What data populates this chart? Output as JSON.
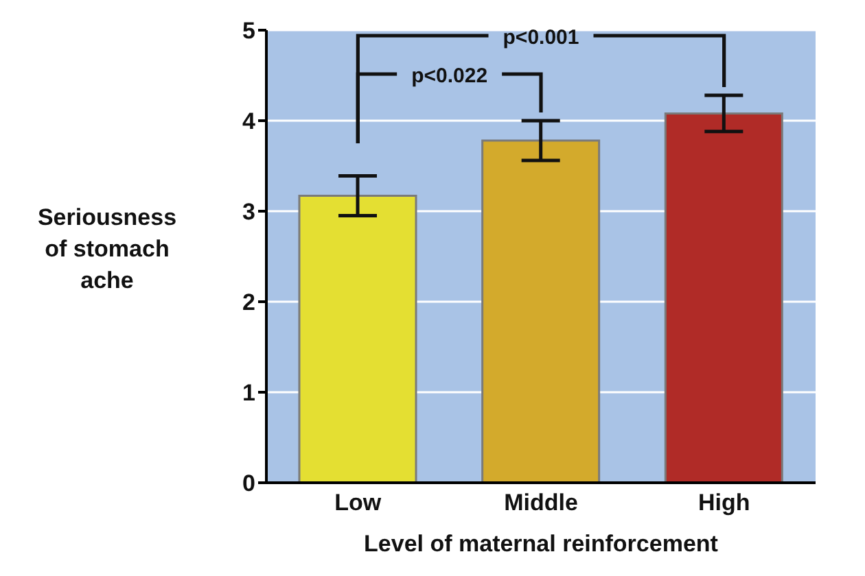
{
  "chart_data": {
    "type": "bar",
    "xlabel": "Level of maternal reinforcement",
    "ylabel": "Seriousness of stomach ache",
    "categories": [
      "Low",
      "Middle",
      "High"
    ],
    "values": [
      3.17,
      3.78,
      4.08
    ],
    "colors": [
      "#e4df32",
      "#d3aa2c",
      "#b02b27"
    ],
    "errors": [
      0.22,
      0.22,
      0.2
    ],
    "ylim": [
      0,
      5
    ],
    "yticks": [
      0,
      1,
      2,
      3,
      4,
      5
    ],
    "grid": "y",
    "annotations": [
      "p<0.022",
      "p<0.001"
    ]
  }
}
